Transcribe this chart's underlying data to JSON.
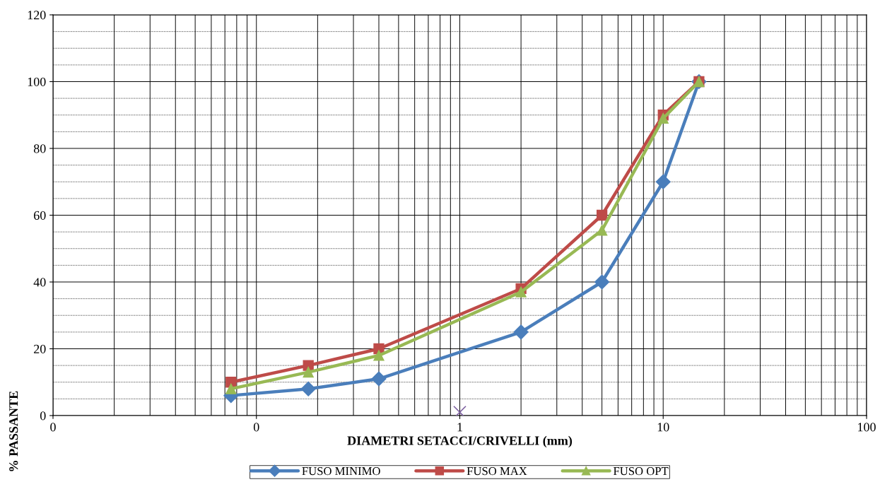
{
  "chart_data": {
    "type": "line",
    "xlabel": "DIAMETRI SETACCI/CRIVELLI (mm)",
    "ylabel": "% PASSANTE",
    "log": "x",
    "xlim": [
      0.01,
      100
    ],
    "xticks": [
      {
        "value": 0.01,
        "label": "0"
      },
      {
        "value": 0.1,
        "label": "0"
      },
      1,
      10,
      100
    ],
    "ylim": [
      0,
      120
    ],
    "yticks": [
      0,
      20,
      40,
      60,
      80,
      100,
      120
    ],
    "grid": true,
    "legend": "bottom",
    "series": [
      {
        "name": "FUSO MINIMO",
        "color": "#4a7ebb",
        "marker": "diamond",
        "x": [
          0.075,
          0.18,
          0.4,
          2,
          5,
          10,
          15
        ],
        "values": [
          6,
          8,
          11,
          25,
          40,
          70,
          100
        ]
      },
      {
        "name": "FUSO MAX",
        "color": "#be4b48",
        "marker": "square",
        "x": [
          0.075,
          0.18,
          0.4,
          2,
          5,
          10,
          15
        ],
        "values": [
          10,
          15,
          20,
          38,
          60,
          90,
          100
        ]
      },
      {
        "name": "FUSO OPT",
        "color": "#98b954",
        "marker": "triangle",
        "x": [
          0.075,
          0.18,
          0.4,
          2,
          5,
          10,
          15
        ],
        "values": [
          8,
          13,
          18,
          37,
          55.5,
          89,
          100
        ]
      },
      {
        "type": "scatter",
        "color": "#7d60a0",
        "marker": "cross",
        "x": [
          1
        ],
        "values": [
          1
        ]
      }
    ]
  }
}
